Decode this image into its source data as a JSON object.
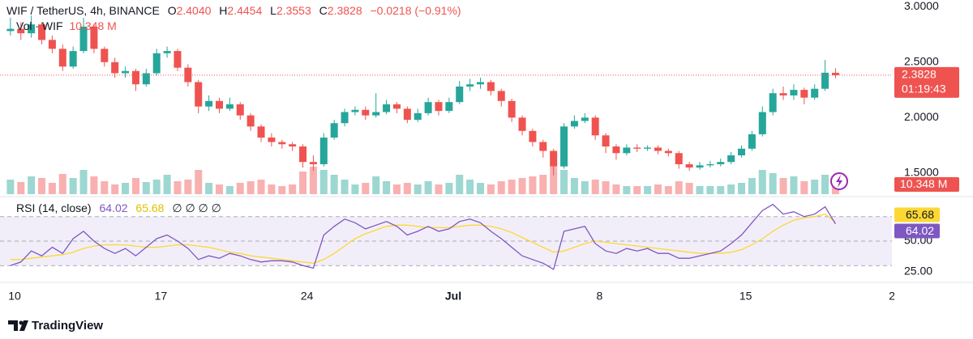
{
  "chart_data": [
    {
      "type": "candlestick",
      "header": {
        "symbol": "WIF / TetherUS, 4h, BINANCE",
        "ohlc": [
          {
            "key": "O",
            "text": "2.4040"
          },
          {
            "key": "H",
            "text": "2.4454"
          },
          {
            "key": "L",
            "text": "2.3553"
          },
          {
            "key": "C",
            "text": "2.3828"
          }
        ],
        "change": "−0.0218 (−0.91%)"
      },
      "up_color": "#26a69a",
      "down_color": "#ef5350",
      "x": [
        9.8,
        10.3,
        10.8,
        11.3,
        11.8,
        12.3,
        12.8,
        13.3,
        13.8,
        14.3,
        14.8,
        15.3,
        15.8,
        16.3,
        16.8,
        17.3,
        17.8,
        18.3,
        18.8,
        19.3,
        19.8,
        20.3,
        20.8,
        21.3,
        21.8,
        22.3,
        22.8,
        23.3,
        23.8,
        24.3,
        24.8,
        25.3,
        25.8,
        26.3,
        26.8,
        27.3,
        27.8,
        28.3,
        28.8,
        29.3,
        29.8,
        30.3,
        30.8,
        31.3,
        31.8,
        32.3,
        32.8,
        33.3,
        33.8,
        34.3,
        34.8,
        35.3,
        35.8,
        36.3,
        36.8,
        37.3,
        37.8,
        38.3,
        38.8,
        39.3,
        39.8,
        40.3,
        40.8,
        41.3,
        41.8,
        42.3,
        42.8,
        43.3,
        43.8,
        44.3,
        44.8,
        45.3,
        45.8,
        46.3,
        46.8,
        47.3,
        47.8,
        48.3,
        48.8,
        49.3
      ],
      "open": [
        2.78,
        2.8,
        2.76,
        2.84,
        2.7,
        2.62,
        2.46,
        2.6,
        2.82,
        2.62,
        2.5,
        2.4,
        2.42,
        2.3,
        2.4,
        2.58,
        2.6,
        2.45,
        2.32,
        2.1,
        2.15,
        2.08,
        2.12,
        2.02,
        1.92,
        1.82,
        1.78,
        1.76,
        1.74,
        1.6,
        1.58,
        1.82,
        1.95,
        2.05,
        2.07,
        2.02,
        2.05,
        2.12,
        2.08,
        1.98,
        2.04,
        2.14,
        2.06,
        2.14,
        2.28,
        2.3,
        2.32,
        2.24,
        2.15,
        2.0,
        1.88,
        1.78,
        1.7,
        1.56,
        1.92,
        1.97,
        2.0,
        1.84,
        1.74,
        1.68,
        1.73,
        1.72,
        1.73,
        1.7,
        1.68,
        1.58,
        1.55,
        1.57,
        1.58,
        1.6,
        1.66,
        1.72,
        1.85,
        2.05,
        2.22,
        2.2,
        2.25,
        2.18,
        2.26,
        2.404
      ],
      "high": [
        2.9,
        2.86,
        2.92,
        2.86,
        2.74,
        2.66,
        2.64,
        2.9,
        2.84,
        2.64,
        2.54,
        2.46,
        2.44,
        2.44,
        2.62,
        2.64,
        2.62,
        2.48,
        2.34,
        2.2,
        2.18,
        2.18,
        2.14,
        2.04,
        1.94,
        1.86,
        1.8,
        1.78,
        1.76,
        1.66,
        1.86,
        1.98,
        2.08,
        2.1,
        2.1,
        2.22,
        2.16,
        2.14,
        2.1,
        2.08,
        2.18,
        2.16,
        2.18,
        2.33,
        2.35,
        2.36,
        2.34,
        2.26,
        2.17,
        2.02,
        1.9,
        1.8,
        1.72,
        1.95,
        2.02,
        2.04,
        2.02,
        1.86,
        1.76,
        1.76,
        1.76,
        1.75,
        1.75,
        1.72,
        1.7,
        1.6,
        1.6,
        1.61,
        1.63,
        1.69,
        1.75,
        1.88,
        2.1,
        2.26,
        2.28,
        2.3,
        2.27,
        2.3,
        2.52,
        2.4454
      ],
      "low": [
        2.74,
        2.7,
        2.72,
        2.66,
        2.58,
        2.42,
        2.44,
        2.58,
        2.58,
        2.46,
        2.36,
        2.36,
        2.24,
        2.28,
        2.38,
        2.54,
        2.42,
        2.28,
        2.04,
        2.06,
        2.04,
        2.06,
        1.98,
        1.88,
        1.78,
        1.74,
        1.72,
        1.7,
        1.55,
        1.52,
        1.56,
        1.8,
        1.92,
        2.02,
        1.98,
        2.0,
        2.03,
        2.04,
        1.95,
        1.96,
        2.02,
        2.02,
        2.04,
        2.12,
        2.24,
        2.26,
        2.2,
        2.1,
        1.96,
        1.84,
        1.74,
        1.64,
        1.48,
        1.54,
        1.9,
        1.95,
        1.8,
        1.68,
        1.62,
        1.66,
        1.69,
        1.7,
        1.67,
        1.65,
        1.54,
        1.52,
        1.53,
        1.55,
        1.56,
        1.58,
        1.64,
        1.7,
        1.83,
        2.02,
        2.16,
        2.16,
        2.12,
        2.16,
        2.24,
        2.3553
      ],
      "close": [
        2.8,
        2.76,
        2.84,
        2.7,
        2.62,
        2.46,
        2.6,
        2.82,
        2.62,
        2.5,
        2.4,
        2.42,
        2.3,
        2.4,
        2.58,
        2.6,
        2.45,
        2.32,
        2.1,
        2.15,
        2.08,
        2.12,
        2.02,
        1.92,
        1.82,
        1.78,
        1.76,
        1.74,
        1.6,
        1.58,
        1.82,
        1.95,
        2.05,
        2.07,
        2.02,
        2.05,
        2.12,
        2.08,
        1.98,
        2.04,
        2.14,
        2.06,
        2.14,
        2.28,
        2.3,
        2.32,
        2.24,
        2.15,
        2.0,
        1.88,
        1.78,
        1.7,
        1.56,
        1.92,
        1.97,
        2.0,
        1.84,
        1.74,
        1.68,
        1.73,
        1.72,
        1.73,
        1.7,
        1.68,
        1.58,
        1.55,
        1.57,
        1.58,
        1.6,
        1.66,
        1.72,
        1.85,
        2.05,
        2.22,
        2.2,
        2.25,
        2.18,
        2.26,
        2.4046,
        2.3828
      ],
      "volume": {
        "name": "Vol · WIF",
        "last_label": "10.348 M",
        "values": [
          18,
          15,
          22,
          20,
          14,
          25,
          20,
          30,
          22,
          16,
          12,
          14,
          20,
          15,
          18,
          24,
          16,
          18,
          30,
          14,
          12,
          10,
          14,
          16,
          18,
          12,
          10,
          12,
          28,
          34,
          30,
          24,
          18,
          12,
          14,
          22,
          16,
          12,
          14,
          12,
          16,
          12,
          14,
          24,
          18,
          14,
          12,
          16,
          18,
          20,
          22,
          24,
          34,
          30,
          20,
          16,
          18,
          16,
          12,
          10,
          10,
          10,
          12,
          10,
          16,
          14,
          10,
          10,
          10,
          12,
          14,
          20,
          30,
          26,
          20,
          22,
          16,
          18,
          24,
          10.348
        ]
      },
      "last_price": {
        "value": 2.3828,
        "label": "2.3828"
      },
      "countdown": "01:19:43",
      "xlim": [
        9.3,
        52
      ],
      "xticks": [
        {
          "value": 10,
          "label": "10"
        },
        17,
        24,
        {
          "value": 31,
          "label": "Jul"
        },
        {
          "value": 38,
          "label": "8"
        },
        {
          "value": 45,
          "label": "15"
        },
        {
          "value": 52,
          "label": "2"
        }
      ],
      "ylim": [
        1.31,
        3.06
      ],
      "yticks": [
        {
          "value": 3,
          "label": "3.0000"
        },
        {
          "value": 2.5,
          "label": "2.5000"
        },
        {
          "value": 2,
          "label": "2.0000"
        },
        {
          "value": 1.5,
          "label": "1.5000"
        }
      ]
    },
    {
      "type": "line",
      "title": "RSI (14, close)",
      "placeholders": "∅ ∅ ∅ ∅",
      "series": [
        {
          "color": "#7e57c2",
          "values": [
            30,
            33,
            42,
            38,
            45,
            40,
            52,
            58,
            50,
            44,
            40,
            44,
            38,
            45,
            52,
            55,
            50,
            44,
            35,
            38,
            36,
            40,
            38,
            35,
            33,
            34,
            34,
            33,
            30,
            28,
            55,
            62,
            68,
            65,
            60,
            63,
            66,
            62,
            55,
            58,
            62,
            58,
            60,
            66,
            68,
            65,
            58,
            52,
            45,
            38,
            35,
            32,
            27,
            58,
            60,
            62,
            48,
            42,
            40,
            44,
            42,
            44,
            40,
            40,
            36,
            36,
            38,
            40,
            42,
            48,
            55,
            65,
            75,
            80,
            72,
            74,
            70,
            72,
            78,
            64.02
          ]
        },
        {
          "color": "#fdd835",
          "values": [
            35,
            35,
            36,
            37,
            38,
            39,
            41,
            44,
            46,
            47,
            47,
            47,
            46,
            45,
            45,
            46,
            47,
            47,
            46,
            45,
            43,
            41,
            40,
            38,
            37,
            36,
            35,
            34,
            33,
            32,
            35,
            40,
            46,
            52,
            56,
            59,
            62,
            63,
            63,
            62,
            61,
            61,
            61,
            62,
            63,
            63,
            62,
            60,
            57,
            53,
            49,
            45,
            41,
            42,
            45,
            48,
            50,
            49,
            48,
            47,
            46,
            45,
            44,
            43,
            42,
            41,
            40,
            40,
            40,
            41,
            43,
            47,
            52,
            58,
            63,
            67,
            69,
            70,
            72,
            65.68
          ]
        }
      ],
      "bands": [
        30,
        50,
        70
      ],
      "ylim": [
        19,
        85
      ],
      "yticks": [
        {
          "value": 50,
          "label": "50.00"
        },
        {
          "value": 25,
          "label": "25.00"
        }
      ]
    }
  ],
  "footer": {
    "brand": "TradingView"
  }
}
